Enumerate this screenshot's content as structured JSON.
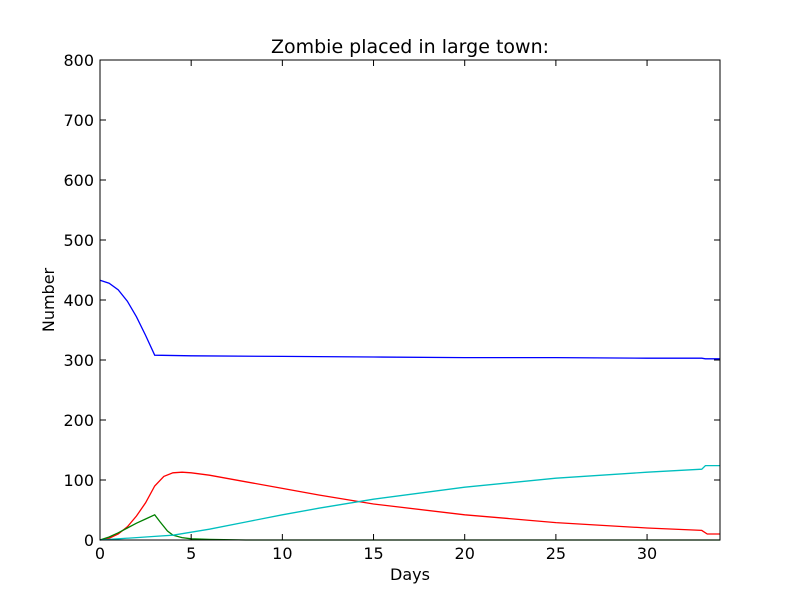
{
  "chart_data": {
    "type": "line",
    "title": "Zombie placed in large town:",
    "xlabel": "Days",
    "ylabel": "Number",
    "xlim": [
      0,
      34
    ],
    "ylim": [
      0,
      800
    ],
    "xticks": [
      0,
      5,
      10,
      15,
      20,
      25,
      30
    ],
    "yticks": [
      0,
      100,
      200,
      300,
      400,
      500,
      600,
      700,
      800
    ],
    "grid": false,
    "legend": "none",
    "series": [
      {
        "color": "#0000ff",
        "x": [
          0,
          0.5,
          1,
          1.5,
          2,
          2.5,
          3,
          5,
          10,
          15,
          20,
          25,
          30,
          33,
          33.2,
          34
        ],
        "y": [
          433,
          428,
          417,
          398,
          372,
          341,
          308,
          307,
          306,
          305,
          304,
          304,
          303,
          303,
          302,
          302
        ]
      },
      {
        "color": "#ff0000",
        "x": [
          0,
          0.5,
          1,
          1.5,
          2,
          2.5,
          3,
          3.5,
          4,
          4.5,
          5,
          6,
          8,
          10,
          12,
          15,
          20,
          25,
          30,
          33,
          33.3,
          34
        ],
        "y": [
          0,
          3,
          10,
          22,
          40,
          62,
          90,
          106,
          112,
          113,
          112,
          108,
          97,
          86,
          75,
          60,
          42,
          29,
          20,
          16,
          10,
          10
        ]
      },
      {
        "color": "#008000",
        "x": [
          0,
          0.5,
          1,
          1.5,
          2,
          2.5,
          3,
          3.3,
          3.7,
          4,
          4.5,
          5,
          6,
          8,
          34
        ],
        "y": [
          0,
          5,
          12,
          20,
          28,
          35,
          42,
          30,
          15,
          8,
          4,
          2,
          1,
          0,
          0
        ]
      },
      {
        "color": "#00bfbf",
        "x": [
          0,
          1,
          2,
          3,
          4,
          5,
          6,
          8,
          10,
          12,
          15,
          20,
          25,
          30,
          33,
          33.2,
          34
        ],
        "y": [
          0,
          2,
          4,
          6,
          8,
          13,
          18,
          30,
          42,
          53,
          68,
          88,
          103,
          113,
          118,
          124,
          124
        ]
      }
    ]
  }
}
